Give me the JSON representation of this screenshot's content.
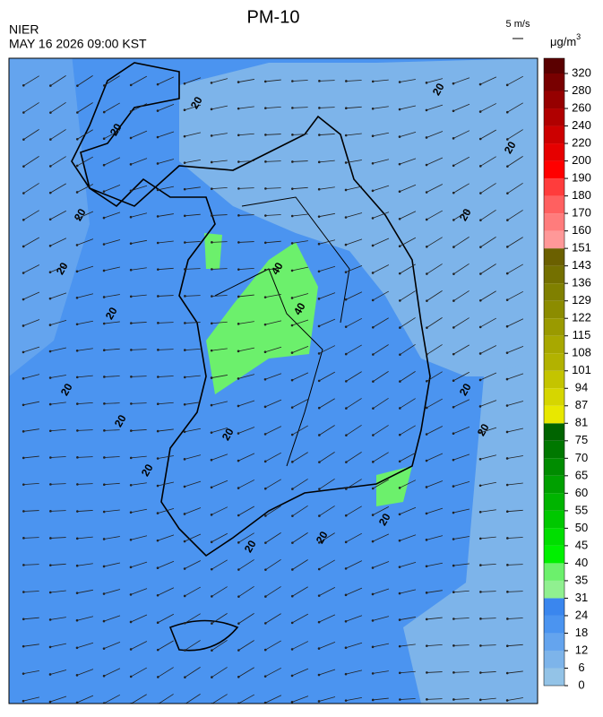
{
  "header": {
    "title": "PM-10",
    "agency": "NIER",
    "datetime": "MAY 16 2026 09:00 KST"
  },
  "wind_scale": {
    "label": "5 m/s"
  },
  "colorbar": {
    "unit": "μg/m",
    "unit_exp": "3",
    "levels": [
      0,
      6,
      12,
      18,
      24,
      31,
      35,
      40,
      45,
      50,
      55,
      60,
      65,
      70,
      75,
      81,
      87,
      94,
      101,
      108,
      115,
      122,
      129,
      136,
      143,
      151,
      160,
      170,
      180,
      190,
      200,
      220,
      240,
      260,
      280,
      320
    ],
    "colors": [
      "#93c3e7",
      "#7db4ea",
      "#64a4ee",
      "#4b94f0",
      "#3a86ee",
      "#90f090",
      "#6cf06c",
      "#00f000",
      "#00de00",
      "#00c800",
      "#00b400",
      "#00a000",
      "#008c00",
      "#007800",
      "#006400",
      "#e8e800",
      "#d6d600",
      "#c4c400",
      "#b2b200",
      "#a8a800",
      "#9a9a00",
      "#8c8c00",
      "#808000",
      "#747000",
      "#6b6000",
      "#ff9898",
      "#ff7c7c",
      "#ff6060",
      "#ff3c3c",
      "#ff0000",
      "#e60000",
      "#cc0000",
      "#b00000",
      "#960000",
      "#780000",
      "#5a0000"
    ]
  },
  "map": {
    "contour_labels": [
      "20",
      "20",
      "20",
      "20",
      "20",
      "20",
      "20",
      "20",
      "20",
      "20",
      "20",
      "20",
      "20",
      "20",
      "20",
      "20",
      "20",
      "40",
      "40"
    ]
  }
}
